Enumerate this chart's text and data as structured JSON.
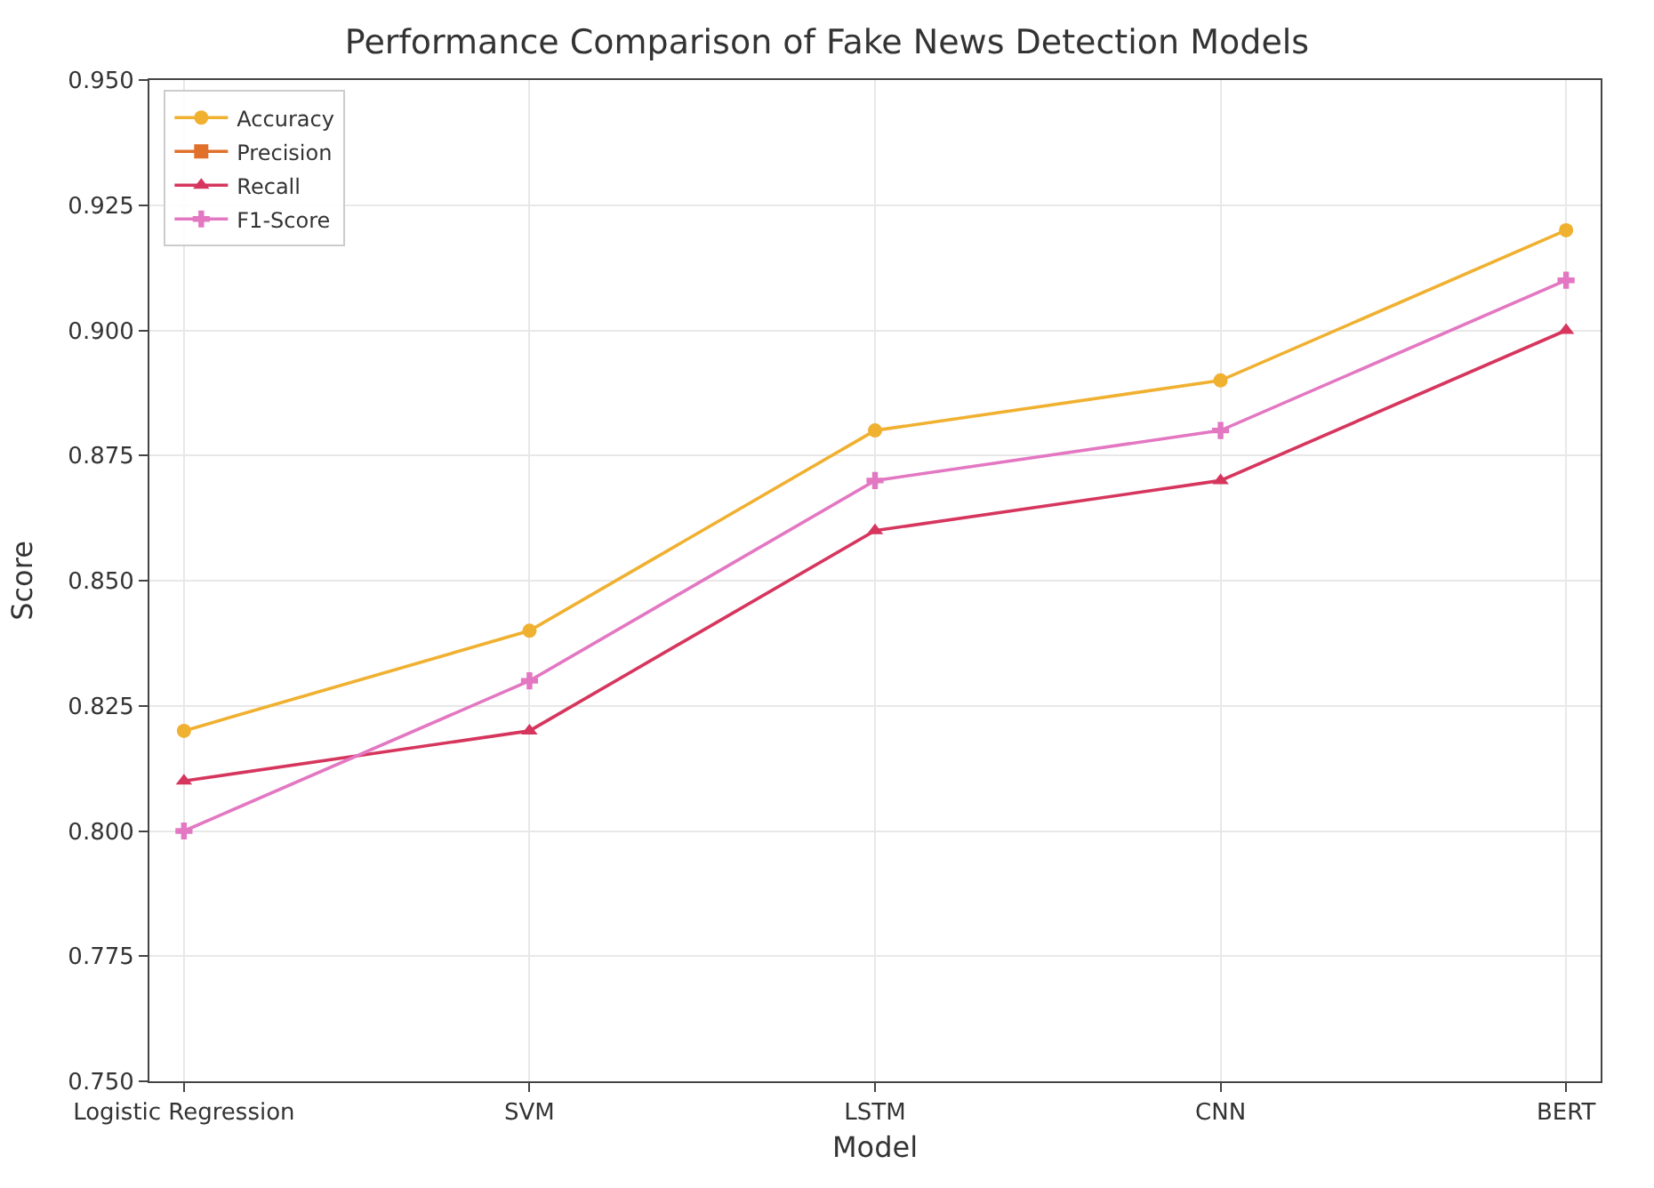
{
  "chart_data": {
    "type": "line",
    "title": "Performance Comparison of Fake News Detection Models",
    "xlabel": "Model",
    "ylabel": "Score",
    "categories": [
      "Logistic Regression",
      "SVM",
      "LSTM",
      "CNN",
      "BERT"
    ],
    "series": [
      {
        "name": "Accuracy",
        "color": "#f0b030",
        "marker": "circle",
        "values": [
          0.82,
          0.84,
          0.88,
          0.89,
          0.92
        ]
      },
      {
        "name": "Precision",
        "color": "#e0702a",
        "marker": "square",
        "values": [
          null,
          null,
          null,
          null,
          null
        ]
      },
      {
        "name": "Recall",
        "color": "#d6365e",
        "marker": "triangle",
        "values": [
          0.81,
          0.82,
          0.86,
          0.87,
          0.9
        ]
      },
      {
        "name": "F1-Score",
        "color": "#e377c2",
        "marker": "cross",
        "values": [
          0.8,
          0.83,
          0.87,
          0.88,
          0.91
        ]
      }
    ],
    "ylim": [
      0.75,
      0.95
    ],
    "yticks": [
      {
        "value": 0.75,
        "label": "0.750"
      },
      0.775,
      {
        "value": 0.8,
        "label": "0.800"
      },
      0.825,
      {
        "value": 0.85,
        "label": "0.850"
      },
      0.875,
      {
        "value": 0.9,
        "label": "0.900"
      },
      0.925,
      {
        "value": 0.95,
        "label": "0.950"
      }
    ],
    "grid": true,
    "legend": "top left",
    "line_style": "solid"
  }
}
